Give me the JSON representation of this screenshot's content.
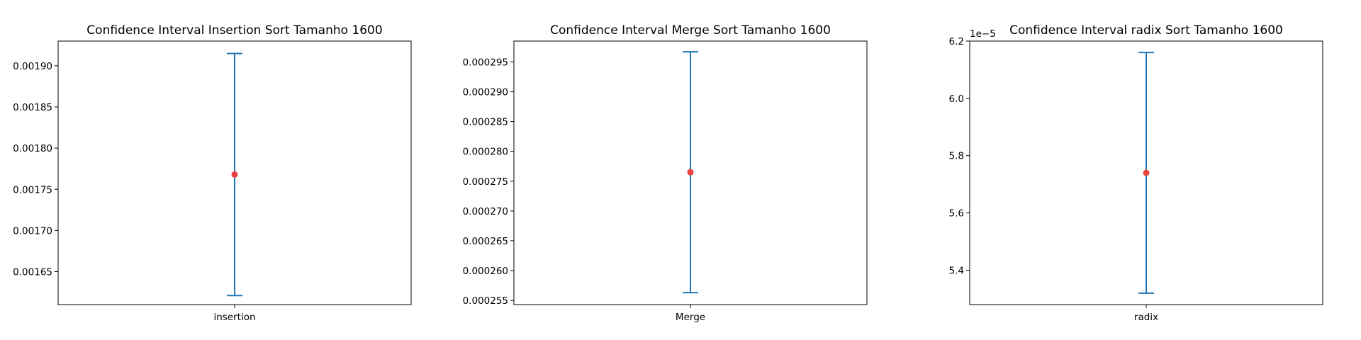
{
  "chart_data": [
    {
      "type": "errorbar",
      "title": "Confidence Interval Insertion Sort Tamanho 1600",
      "categories": [
        "insertion"
      ],
      "mean": 0.001768,
      "lower": 0.001621,
      "upper": 0.001915,
      "ylim": [
        0.00161,
        0.00193
      ],
      "yticks": [
        0.00165,
        0.0017,
        0.00175,
        0.0018,
        0.00185,
        0.0019
      ],
      "ytick_labels": [
        "0.00165",
        "0.00170",
        "0.00175",
        "0.00180",
        "0.00185",
        "0.00190"
      ],
      "offset_text": "",
      "grid": false,
      "colors": {
        "bar": "#1f77b4",
        "point": "#e8423a"
      }
    },
    {
      "type": "errorbar",
      "title": "Confidence Interval Merge Sort Tamanho 1600",
      "categories": [
        "Merge"
      ],
      "mean": 0.0002765,
      "lower": 0.0002563,
      "upper": 0.0002967,
      "ylim": [
        0.0002543,
        0.0002985
      ],
      "yticks": [
        0.000255,
        0.00026,
        0.000265,
        0.00027,
        0.000275,
        0.00028,
        0.000285,
        0.00029,
        0.000295
      ],
      "ytick_labels": [
        "0.000255",
        "0.000260",
        "0.000265",
        "0.000270",
        "0.000275",
        "0.000280",
        "0.000285",
        "0.000290",
        "0.000295"
      ],
      "offset_text": "",
      "grid": false,
      "colors": {
        "bar": "#1f77b4",
        "point": "#e8423a"
      }
    },
    {
      "type": "errorbar",
      "title": "Confidence Interval radix Sort Tamanho 1600",
      "categories": [
        "radix"
      ],
      "mean": 5.74,
      "lower": 5.32,
      "upper": 6.16,
      "ylim": [
        5.28,
        6.2
      ],
      "yticks": [
        5.4,
        5.6,
        5.8,
        6.0,
        6.2
      ],
      "ytick_labels": [
        "5.4",
        "5.6",
        "5.8",
        "6.0",
        "6.2"
      ],
      "offset_text": "1e−5",
      "grid": false,
      "colors": {
        "bar": "#1f77b4",
        "point": "#e8423a"
      }
    }
  ]
}
